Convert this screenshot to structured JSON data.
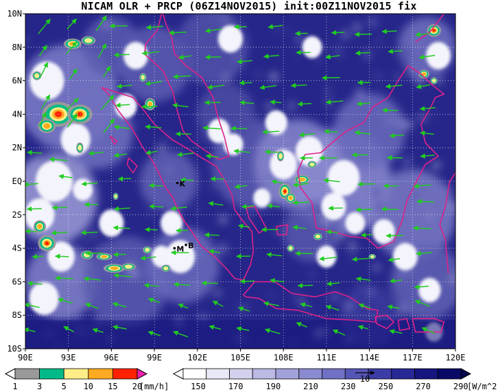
{
  "title": "NICAM OLR + PRCP (06Z14NOV2015) init:00Z11NOV2015 fix",
  "map": {
    "lon_range": [
      90,
      120
    ],
    "lat_range": [
      -10,
      10
    ],
    "lon_ticks": [
      "90E",
      "93E",
      "96E",
      "99E",
      "102E",
      "105E",
      "108E",
      "111E",
      "114E",
      "117E",
      "120E"
    ],
    "lat_ticks": [
      "10N",
      "8N",
      "6N",
      "4N",
      "2N",
      "EQ",
      "2S",
      "4S",
      "6S",
      "8S",
      "10S"
    ],
    "background_color": "#26268a",
    "wind_color": "#22cc22",
    "coast_color": "#dd2288",
    "grid": true,
    "stations": [
      {
        "label": "K",
        "lon": 100.6,
        "lat": -0.1
      },
      {
        "label": "M",
        "lon": 100.4,
        "lat": -4.0
      },
      {
        "label": "B",
        "lon": 101.2,
        "lat": -3.8
      }
    ]
  },
  "precip_colorbar": {
    "ticks": [
      "1",
      "3",
      "5",
      "10",
      "15",
      "20"
    ],
    "unit": "[mm/h]",
    "colors": [
      "#ffffff",
      "#999999",
      "#00bb88",
      "#ffee88",
      "#ffaa22",
      "#ff2200",
      "#ee22aa"
    ]
  },
  "olr_colorbar": {
    "ticks": [
      "150",
      "170",
      "190",
      "210",
      "230",
      "250",
      "270",
      "290"
    ],
    "unit": "[W/m^2]",
    "colors": [
      "#ffffff",
      "#e8e8f6",
      "#d2d2ee",
      "#babae4",
      "#a2a2da",
      "#8a8ad0",
      "#7070c4",
      "#5656b6",
      "#3c3ca6",
      "#282896",
      "#16167e",
      "#0a0a66"
    ]
  },
  "wind_reference": {
    "label": "10"
  }
}
